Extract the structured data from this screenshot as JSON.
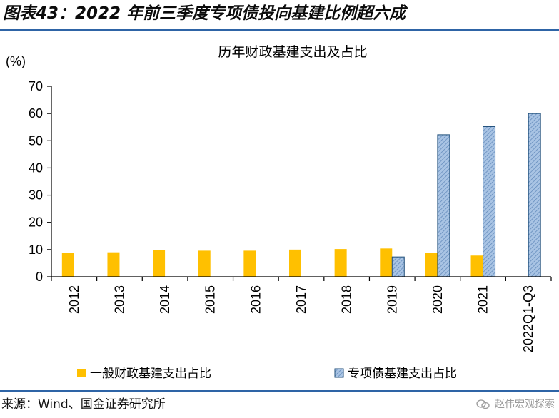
{
  "figure": {
    "title": "图表43：2022 年前三季度专项债投向基建比例超六成",
    "source": "来源：Wind、国金证券研究所",
    "watermark": "赵伟宏观探索"
  },
  "colors": {
    "accent_rule": "#2e64a6",
    "series_general": "#ffc000",
    "series_special": "#95b3d7",
    "series_special_stroke": "#1f4e79"
  },
  "chart_data": {
    "type": "bar",
    "title": "历年财政基建支出及占比",
    "unit_label": "(%)",
    "categories": [
      "2012",
      "2013",
      "2014",
      "2015",
      "2016",
      "2017",
      "2018",
      "2019",
      "2020",
      "2021",
      "2022Q1-Q3"
    ],
    "series": [
      {
        "name": "一般财政基建支出占比",
        "values": [
          8.9,
          9.0,
          9.9,
          9.6,
          9.6,
          10.0,
          10.2,
          10.4,
          8.7,
          7.8,
          null
        ]
      },
      {
        "name": "专项债基建支出占比",
        "values": [
          null,
          null,
          null,
          null,
          null,
          null,
          null,
          7.3,
          52.2,
          55.2,
          60.0
        ]
      }
    ],
    "ylim": [
      0,
      70
    ],
    "yticks": [
      0,
      10,
      20,
      30,
      40,
      50,
      60,
      70
    ],
    "grid": false,
    "legend_position": "bottom"
  }
}
